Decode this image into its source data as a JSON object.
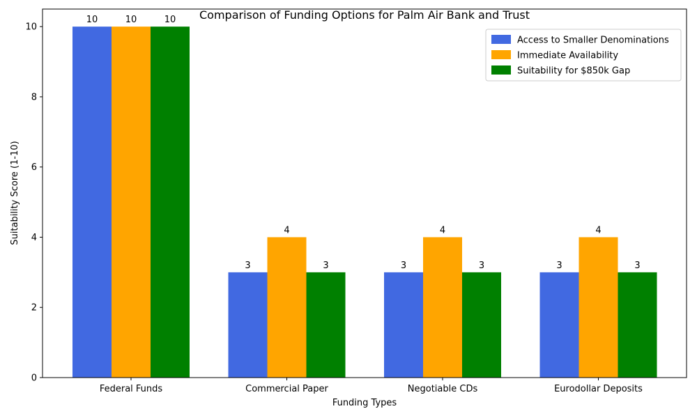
{
  "chart_data": {
    "type": "bar",
    "title": "Comparison of Funding Options for Palm Air Bank and Trust",
    "xlabel": "Funding Types",
    "ylabel": "Suitability Score (1-10)",
    "categories": [
      "Federal Funds",
      "Commercial Paper",
      "Negotiable CDs",
      "Eurodollar Deposits"
    ],
    "series": [
      {
        "name": "Access to Smaller Denominations",
        "values": [
          10,
          3,
          3,
          3
        ],
        "color": "#4169e1"
      },
      {
        "name": "Immediate Availability",
        "values": [
          10,
          4,
          4,
          4
        ],
        "color": "#ffa500"
      },
      {
        "name": "Suitability for $850k Gap",
        "values": [
          10,
          3,
          3,
          3
        ],
        "color": "#008000"
      }
    ],
    "ylim": [
      0,
      10.5
    ],
    "yticks": [
      0,
      2,
      4,
      6,
      8,
      10
    ],
    "grid": false,
    "legend_position": "top-right"
  }
}
